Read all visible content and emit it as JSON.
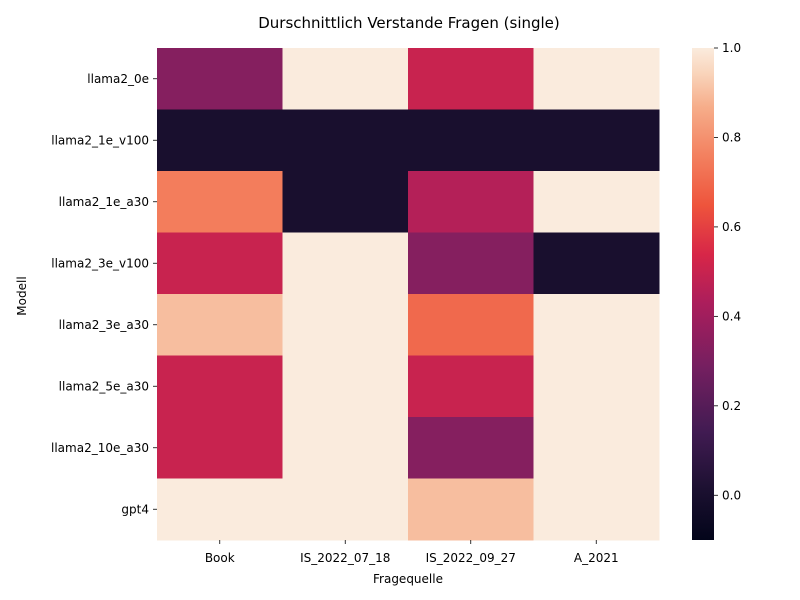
{
  "chart_data": {
    "type": "heatmap",
    "title": "Durschnittlich Verstande Fragen (single)",
    "xlabel": "Fragequelle",
    "ylabel": "Modell",
    "columns": [
      "Book",
      "IS_2022_07_18",
      "IS_2022_09_27",
      "A_2021"
    ],
    "rows": [
      "llama2_0e",
      "llama2_1e_v100",
      "llama2_1e_a30",
      "llama2_3e_v100",
      "llama2_3e_a30",
      "llama2_5e_a30",
      "llama2_10e_a30",
      "gpt4"
    ],
    "values": [
      [
        0.33,
        1.0,
        0.5,
        1.0
      ],
      [
        0.0,
        0.0,
        0.0,
        0.0
      ],
      [
        0.75,
        0.0,
        0.45,
        1.0
      ],
      [
        0.5,
        1.0,
        0.33,
        0.0
      ],
      [
        0.9,
        1.0,
        0.7,
        1.0
      ],
      [
        0.5,
        1.0,
        0.5,
        1.0
      ],
      [
        0.5,
        1.0,
        0.33,
        1.0
      ],
      [
        1.0,
        1.0,
        0.9,
        1.0
      ]
    ],
    "colorbar": {
      "vmin": -0.1,
      "vmax": 1.0,
      "ticks": [
        "0.0",
        "0.2",
        "0.4",
        "0.6",
        "0.8",
        "1.0"
      ],
      "colormap": "rocket"
    },
    "grid": false,
    "legend": "colorbar-right"
  }
}
